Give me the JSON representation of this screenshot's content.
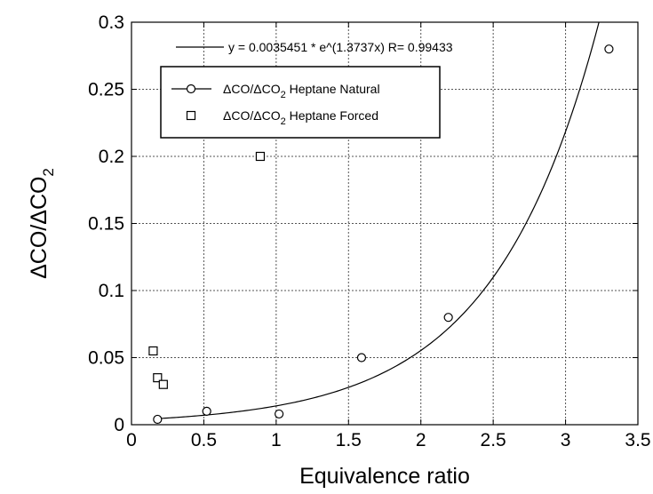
{
  "chart_data": {
    "type": "scatter",
    "xlabel": "Equivalence ratio",
    "ylabel": "ΔCO/ΔCO",
    "ylabel_subscript": "2",
    "xlim": [
      0,
      3.5
    ],
    "ylim": [
      0,
      0.3
    ],
    "x_ticks": [
      0,
      0.5,
      1,
      1.5,
      2,
      2.5,
      3,
      3.5
    ],
    "y_ticks": [
      0,
      0.05,
      0.1,
      0.15,
      0.2,
      0.25,
      0.3
    ],
    "x_tick_labels": [
      "0",
      "0.5",
      "1",
      "1.5",
      "2",
      "2.5",
      "3",
      "3.5"
    ],
    "y_tick_labels": [
      "0",
      "0.05",
      "0.1",
      "0.15",
      "0.2",
      "0.25",
      "0.3"
    ],
    "grid": true,
    "fit": {
      "label": "y = 0.0035451 * e^(1.3737x)   R= 0.99433",
      "a": 0.0035451,
      "b": 1.3737,
      "x_range": [
        0.17,
        3.3
      ]
    },
    "series": [
      {
        "name": "ΔCO/ΔCO",
        "name_sub": "2",
        "name_rest": " Heptane Natural",
        "marker": "circle",
        "points": [
          [
            0.18,
            0.004
          ],
          [
            0.52,
            0.01
          ],
          [
            1.02,
            0.008
          ],
          [
            1.59,
            0.05
          ],
          [
            2.19,
            0.08
          ],
          [
            3.3,
            0.28
          ]
        ]
      },
      {
        "name": "ΔCO/ΔCO",
        "name_sub": "2",
        "name_rest": " Heptane Forced",
        "marker": "square",
        "points": [
          [
            0.15,
            0.055
          ],
          [
            0.18,
            0.035
          ],
          [
            0.22,
            0.03
          ],
          [
            0.89,
            0.2
          ]
        ]
      }
    ]
  }
}
